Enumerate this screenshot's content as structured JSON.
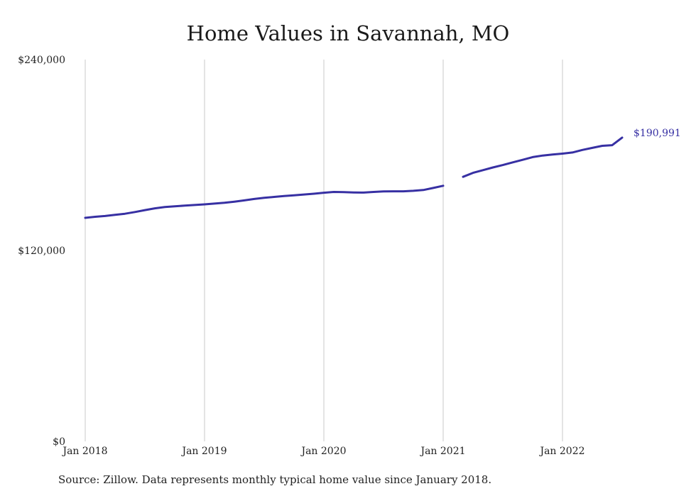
{
  "chart_data": {
    "type": "line",
    "title": "Home Values in Savannah, MO",
    "source_note": "Source: Zillow. Data represents monthly typical home value since January 2018.",
    "x_ticks": [
      "Jan 2018",
      "Jan 2019",
      "Jan 2020",
      "Jan 2021",
      "Jan 2022"
    ],
    "y_ticks": [
      "$0",
      "$120,000",
      "$240,000"
    ],
    "ylim": [
      0,
      240000
    ],
    "grid": "vertical",
    "color": "#3730a3",
    "end_label": "$190,991",
    "series": [
      {
        "segments": [
          [
            {
              "x": "2018-01",
              "y": 140500
            },
            {
              "x": "2018-02",
              "y": 141200
            },
            {
              "x": "2018-03",
              "y": 141700
            },
            {
              "x": "2018-04",
              "y": 142400
            },
            {
              "x": "2018-05",
              "y": 143100
            },
            {
              "x": "2018-06",
              "y": 144200
            },
            {
              "x": "2018-07",
              "y": 145400
            },
            {
              "x": "2018-08",
              "y": 146500
            },
            {
              "x": "2018-09",
              "y": 147300
            },
            {
              "x": "2018-10",
              "y": 147800
            },
            {
              "x": "2018-11",
              "y": 148200
            },
            {
              "x": "2018-12",
              "y": 148600
            },
            {
              "x": "2019-01",
              "y": 149000
            },
            {
              "x": "2019-02",
              "y": 149500
            },
            {
              "x": "2019-03",
              "y": 150000
            },
            {
              "x": "2019-04",
              "y": 150700
            },
            {
              "x": "2019-05",
              "y": 151500
            },
            {
              "x": "2019-06",
              "y": 152400
            },
            {
              "x": "2019-07",
              "y": 153100
            },
            {
              "x": "2019-08",
              "y": 153700
            },
            {
              "x": "2019-09",
              "y": 154200
            },
            {
              "x": "2019-10",
              "y": 154700
            },
            {
              "x": "2019-11",
              "y": 155200
            },
            {
              "x": "2019-12",
              "y": 155700
            },
            {
              "x": "2020-01",
              "y": 156300
            },
            {
              "x": "2020-02",
              "y": 156800
            },
            {
              "x": "2020-03",
              "y": 156700
            },
            {
              "x": "2020-04",
              "y": 156500
            },
            {
              "x": "2020-05",
              "y": 156400
            },
            {
              "x": "2020-06",
              "y": 156800
            },
            {
              "x": "2020-07",
              "y": 157100
            },
            {
              "x": "2020-08",
              "y": 157200
            },
            {
              "x": "2020-09",
              "y": 157200
            },
            {
              "x": "2020-10",
              "y": 157500
            },
            {
              "x": "2020-11",
              "y": 158000
            },
            {
              "x": "2020-12",
              "y": 159300
            },
            {
              "x": "2021-01",
              "y": 160700
            }
          ],
          [
            {
              "x": "2021-03",
              "y": 166300
            },
            {
              "x": "2021-04",
              "y": 168800
            },
            {
              "x": "2021-05",
              "y": 170500
            },
            {
              "x": "2021-06",
              "y": 172200
            },
            {
              "x": "2021-07",
              "y": 173700
            },
            {
              "x": "2021-08",
              "y": 175400
            },
            {
              "x": "2021-09",
              "y": 177000
            },
            {
              "x": "2021-10",
              "y": 178700
            },
            {
              "x": "2021-11",
              "y": 179700
            },
            {
              "x": "2021-12",
              "y": 180300
            },
            {
              "x": "2022-01",
              "y": 180900
            },
            {
              "x": "2022-02",
              "y": 181600
            },
            {
              "x": "2022-03",
              "y": 183200
            },
            {
              "x": "2022-04",
              "y": 184500
            },
            {
              "x": "2022-05",
              "y": 185800
            },
            {
              "x": "2022-06",
              "y": 186200
            },
            {
              "x": "2022-07",
              "y": 190991
            }
          ]
        ]
      }
    ]
  }
}
